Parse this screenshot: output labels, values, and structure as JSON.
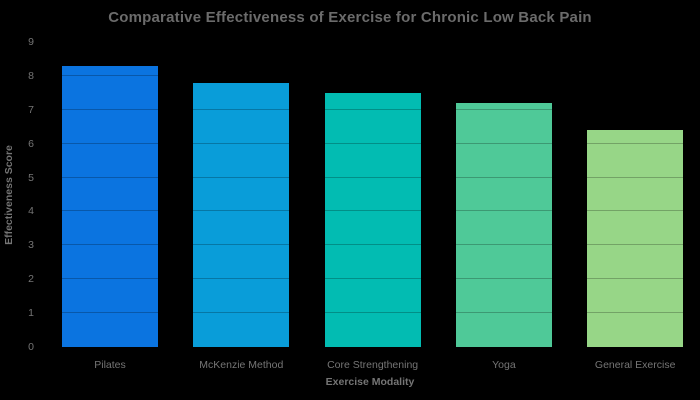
{
  "colors": {
    "background": "#000000",
    "title_text": "#6b6b6b",
    "axis_text": "#757575",
    "gridline_overlay": "rgba(0,0,0,0.24)"
  },
  "chart_data": {
    "type": "bar",
    "title": "Comparative Effectiveness of Exercise for Chronic Low Back Pain",
    "xlabel": "Exercise Modality",
    "ylabel": "Effectiveness Score",
    "categories": [
      "Pilates",
      "McKenzie Method",
      "Core Strengthening",
      "Yoga",
      "General Exercise"
    ],
    "values": [
      8.3,
      7.8,
      7.5,
      7.2,
      6.4
    ],
    "bar_colors": [
      "#0b74e0",
      "#099dd9",
      "#02bcb2",
      "#4fc998",
      "#97d687"
    ],
    "ylim": [
      0,
      9
    ],
    "yticks": [
      0,
      1,
      2,
      3,
      4,
      5,
      6,
      7,
      8,
      9
    ],
    "grid": true,
    "grid_on_top_of_bars": true,
    "legend": false
  }
}
